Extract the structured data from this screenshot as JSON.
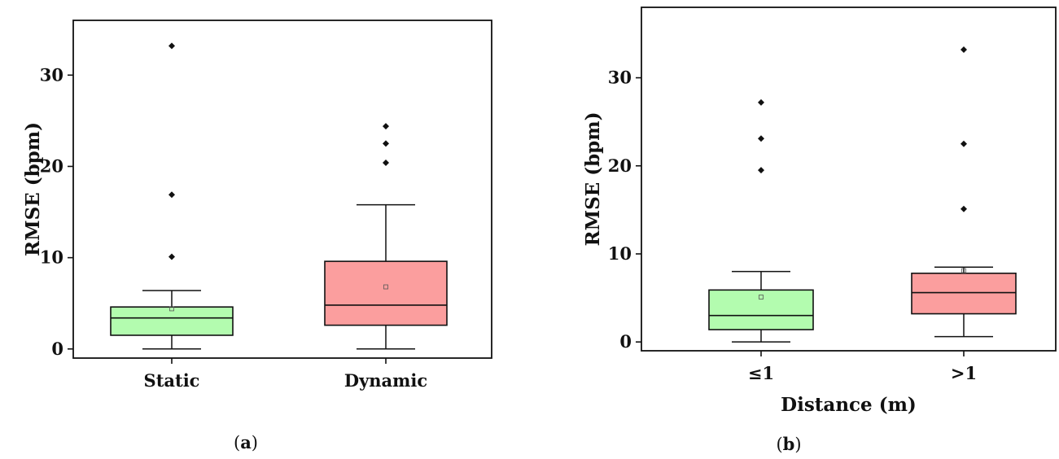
{
  "chart_data": [
    {
      "type": "box",
      "panel_label": "a",
      "caption_open": "(",
      "caption_close": ")",
      "ylabel": "RMSE (bpm)",
      "xlabel": "",
      "ylim": [
        -1,
        36
      ],
      "yticks": [
        0,
        10,
        20,
        30
      ],
      "categories": [
        "Static",
        "Dynamic"
      ],
      "boxes": [
        {
          "category": "Static",
          "color": "#b3fcaf",
          "whisker_low": 0.0,
          "q1": 1.5,
          "median": 3.4,
          "q3": 4.6,
          "whisker_high": 6.4,
          "mean": 4.4,
          "outliers": [
            10.1,
            16.9,
            33.2
          ]
        },
        {
          "category": "Dynamic",
          "color": "#fb9e9e",
          "whisker_low": 0.0,
          "q1": 2.6,
          "median": 4.8,
          "q3": 9.6,
          "whisker_high": 15.8,
          "mean": 6.8,
          "outliers": [
            20.4,
            22.5,
            24.4
          ]
        }
      ]
    },
    {
      "type": "box",
      "panel_label": "b",
      "caption_open": "(",
      "caption_close": ")",
      "ylabel": "RMSE (bpm)",
      "xlabel": "Distance (m)",
      "ylim": [
        -1,
        38
      ],
      "yticks": [
        0,
        10,
        20,
        30
      ],
      "categories": [
        "≤1",
        ">1"
      ],
      "boxes": [
        {
          "category": "≤1",
          "color": "#b3fcaf",
          "whisker_low": 0.0,
          "q1": 1.4,
          "median": 3.0,
          "q3": 5.9,
          "whisker_high": 8.0,
          "mean": 5.1,
          "outliers": [
            19.5,
            23.1,
            27.2
          ]
        },
        {
          "category": ">1",
          "color": "#fb9e9e",
          "whisker_low": 0.6,
          "q1": 3.2,
          "median": 5.6,
          "q3": 7.8,
          "whisker_high": 8.5,
          "mean": 8.1,
          "outliers": [
            15.1,
            22.5,
            33.2
          ]
        }
      ]
    }
  ]
}
